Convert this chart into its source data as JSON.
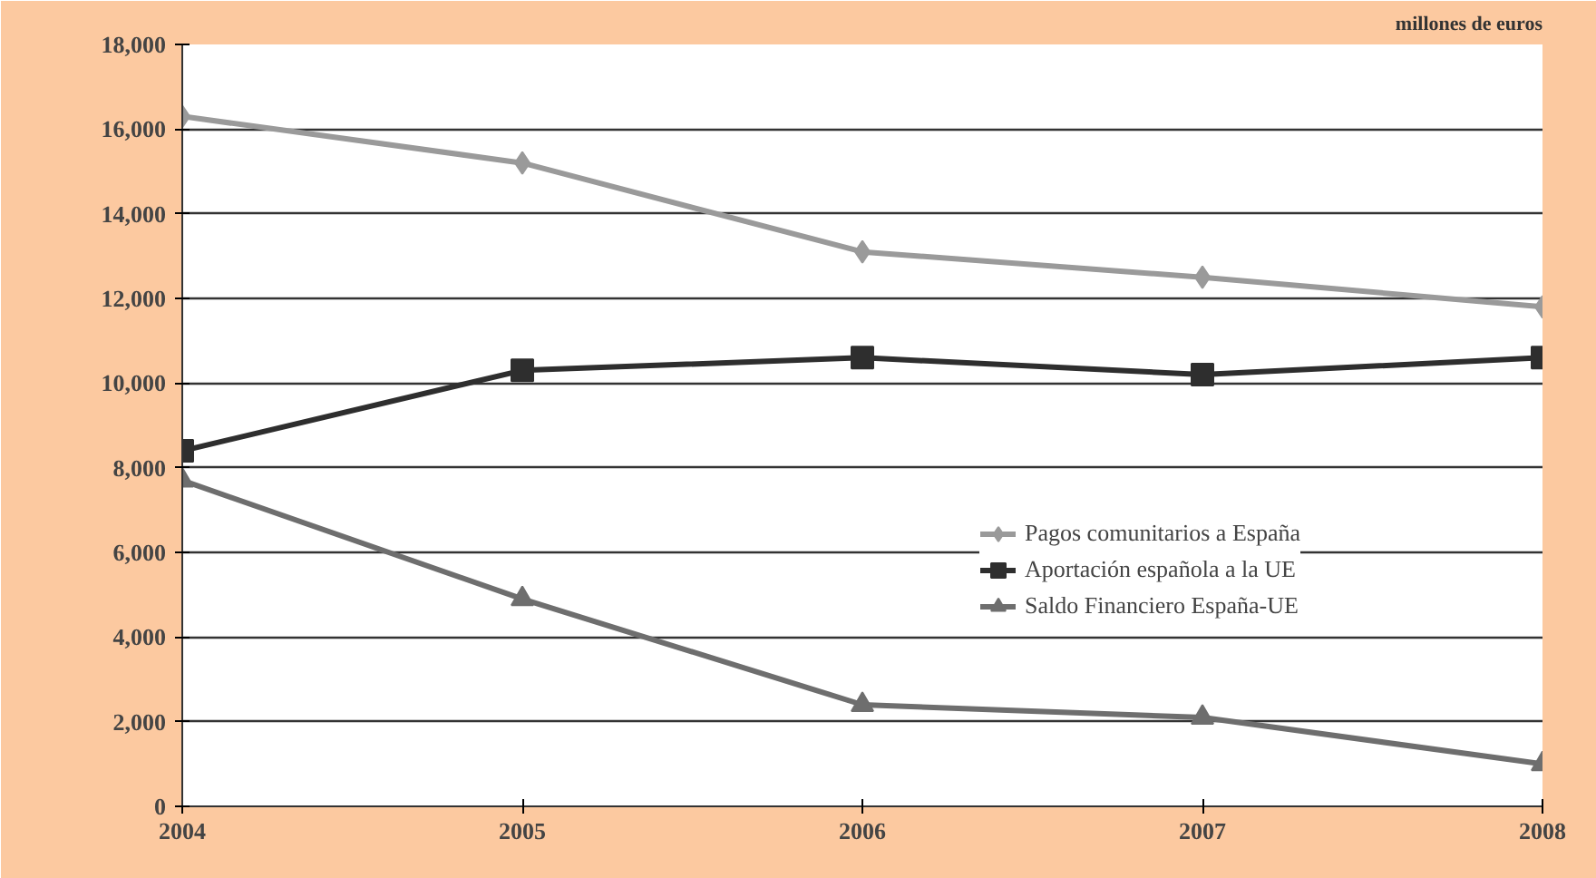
{
  "chart_data": {
    "type": "line",
    "categories": [
      "2004",
      "2005",
      "2006",
      "2007",
      "2008"
    ],
    "series": [
      {
        "name": "Pagos comunitarios a España",
        "color": "#9a9a9a",
        "marker": "diamond",
        "values": [
          16300,
          15200,
          13100,
          12500,
          11800
        ]
      },
      {
        "name": "Aportación española a la UE",
        "color": "#2e2e2e",
        "marker": "square",
        "values": [
          8400,
          10300,
          10600,
          10200,
          10600
        ]
      },
      {
        "name": "Saldo Financiero España-UE",
        "color": "#6e6e6e",
        "marker": "triangle",
        "values": [
          7700,
          4900,
          2400,
          2100,
          1000
        ]
      }
    ],
    "ylim": [
      0,
      18000
    ],
    "yticks": [
      0,
      {
        "value": 2000,
        "label": "2,000"
      },
      {
        "value": 4000,
        "label": "4,000"
      },
      {
        "value": 6000,
        "label": "6,000"
      },
      {
        "value": 8000,
        "label": "8,000"
      },
      {
        "value": 10000,
        "label": "10,000"
      },
      {
        "value": 12000,
        "label": "12,000"
      },
      {
        "value": 14000,
        "label": "14,000"
      },
      {
        "value": 16000,
        "label": "16,000"
      },
      {
        "value": 18000,
        "label": "18,000"
      }
    ],
    "annotations": [
      "millones de euros"
    ],
    "grid": "y",
    "legend": "right",
    "line_style": "solid"
  }
}
